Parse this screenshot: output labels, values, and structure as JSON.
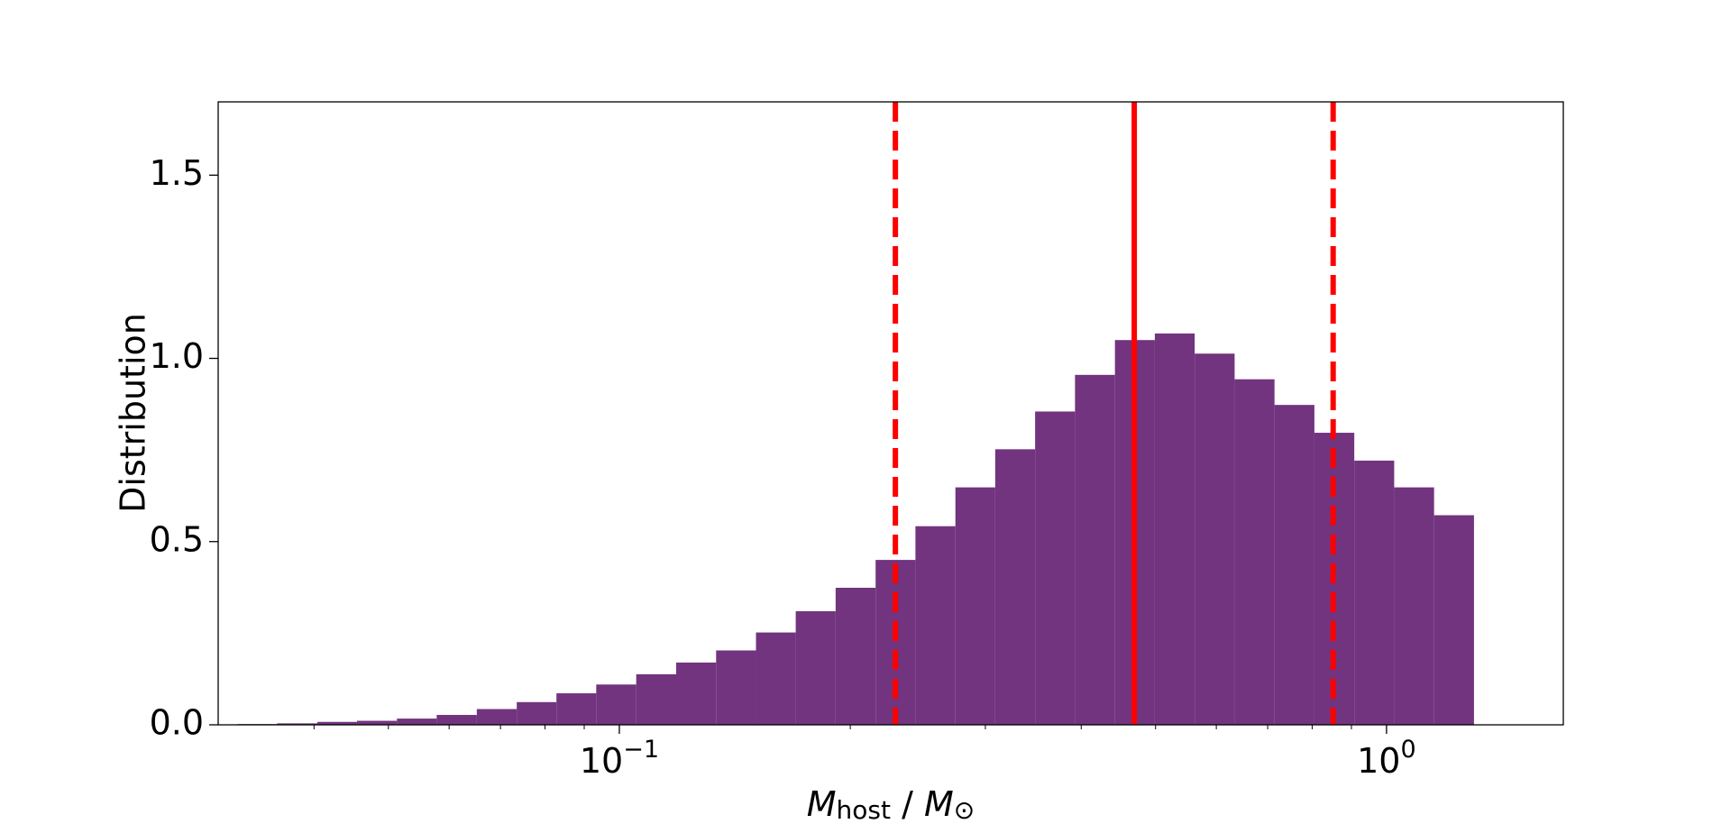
{
  "chart_data": {
    "type": "histogram",
    "xlabel": [
      "M",
      "host",
      " / ",
      "M",
      "⊙"
    ],
    "ylabel": "Distribution",
    "xscale": "log",
    "bins": [
      0.0282,
      0.0318,
      0.0358,
      0.0404,
      0.0455,
      0.0513,
      0.0578,
      0.0652,
      0.0735,
      0.0828,
      0.0933,
      0.1052,
      0.1186,
      0.1337,
      0.1507,
      0.1698,
      0.1914,
      0.2158,
      0.2432,
      0.2742,
      0.309,
      0.3483,
      0.3926,
      0.4426,
      0.4989,
      0.5623,
      0.6339,
      0.7145,
      0.8054,
      0.9078,
      1.0233,
      1.1535,
      1.3002
    ],
    "values": [
      0.001,
      0.002,
      0.004,
      0.008,
      0.011,
      0.017,
      0.027,
      0.043,
      0.062,
      0.086,
      0.11,
      0.138,
      0.17,
      0.203,
      0.252,
      0.31,
      0.374,
      0.45,
      0.542,
      0.648,
      0.752,
      0.855,
      0.955,
      1.05,
      1.068,
      1.013,
      0.943,
      0.873,
      0.797,
      0.721,
      0.648,
      0.572
    ],
    "color": "#72347f",
    "vlines": [
      {
        "x": 0.229,
        "style": "dashed",
        "color": "#ff0000"
      },
      {
        "x": 0.469,
        "style": "solid",
        "color": "#ff0000"
      },
      {
        "x": 0.852,
        "style": "dashed",
        "color": "#ff0000"
      }
    ],
    "xlim": [
      0.03,
      1.7
    ],
    "ylim": [
      0,
      1.7
    ],
    "xticks": [
      {
        "value": 0.1,
        "label": "10−1"
      },
      {
        "value": 1,
        "label": "100"
      }
    ],
    "xminorticks": [
      0.04,
      0.05,
      0.06,
      0.07,
      0.08,
      0.09,
      0.2,
      0.3,
      0.4,
      0.5,
      0.6,
      0.7,
      0.8,
      0.9
    ],
    "yticks": [
      {
        "value": 0,
        "label": "0.0"
      },
      {
        "value": 0.5,
        "label": "0.5"
      },
      {
        "value": 1,
        "label": "1.0"
      },
      {
        "value": 1.5,
        "label": "1.5"
      }
    ]
  }
}
